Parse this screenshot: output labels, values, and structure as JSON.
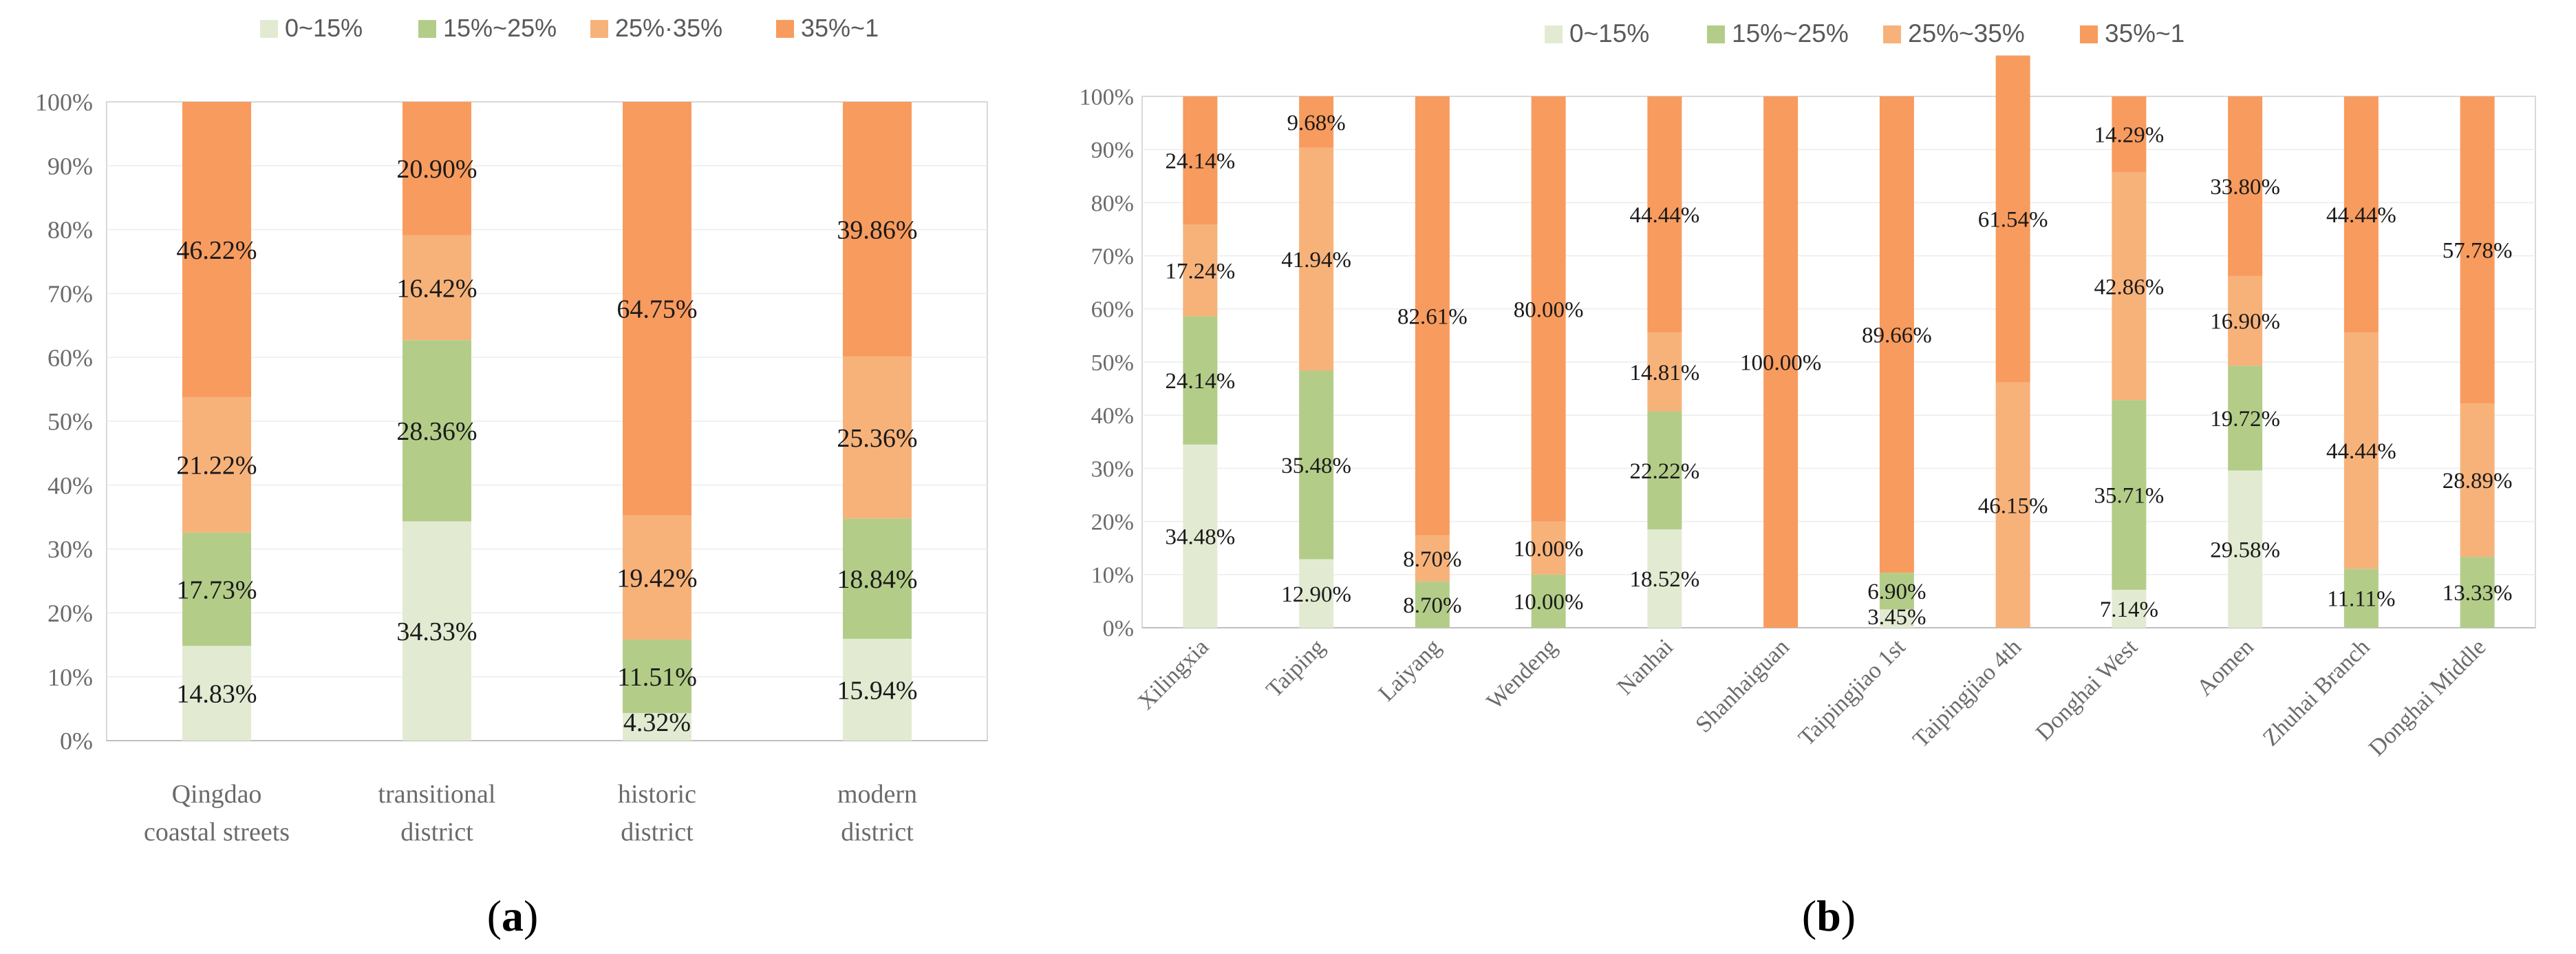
{
  "chart_data": [
    {
      "type": "bar",
      "stacked": true,
      "normalized": true,
      "panel_label": "a",
      "legend_position": "top",
      "legend": [
        "0~15%",
        "15%~25%",
        "25%·35%",
        "35%~1"
      ],
      "ylim": [
        0,
        100
      ],
      "yticks": [
        "0%",
        "10%",
        "20%",
        "30%",
        "40%",
        "50%",
        "60%",
        "70%",
        "80%",
        "90%",
        "100%"
      ],
      "categories": [
        [
          "Qingdao",
          "coastal streets"
        ],
        [
          "transitional",
          "district"
        ],
        [
          "historic",
          "district"
        ],
        [
          "modern",
          "district"
        ]
      ],
      "series": [
        {
          "name": "0~15%",
          "values": [
            14.83,
            34.33,
            4.32,
            15.94
          ],
          "labels": [
            "14.83%",
            "34.33%",
            "4.32%",
            "15.94%"
          ]
        },
        {
          "name": "15%~25%",
          "values": [
            17.73,
            28.36,
            11.51,
            18.84
          ],
          "labels": [
            "17.73%",
            "28.36%",
            "11.51%",
            "18.84%"
          ]
        },
        {
          "name": "25%·35%",
          "values": [
            21.22,
            16.42,
            19.42,
            25.36
          ],
          "labels": [
            "21.22%",
            "16.42%",
            "19.42%",
            "25.36%"
          ]
        },
        {
          "name": "35%~1",
          "values": [
            46.22,
            20.9,
            64.75,
            39.86
          ],
          "labels": [
            "46.22%",
            "20.90%",
            "64.75%",
            "39.86%"
          ]
        }
      ]
    },
    {
      "type": "bar",
      "stacked": true,
      "normalized": true,
      "panel_label": "b",
      "legend_position": "top",
      "legend": [
        "0~15%",
        "15%~25%",
        "25%~35%",
        "35%~1"
      ],
      "ylim": [
        0,
        100
      ],
      "yticks": [
        "0%",
        "10%",
        "20%",
        "30%",
        "40%",
        "50%",
        "60%",
        "70%",
        "80%",
        "90%",
        "100%"
      ],
      "categories": [
        "Xilingxia",
        "Taiping",
        "Laiyang",
        "Wendeng",
        "Nanhai",
        "Shanhaiguan",
        "Taipingjiao 1st",
        "Taipingjiao 4th",
        "Donghai West",
        "Aomen",
        "Zhuhai Branch",
        "Donghai Middle"
      ],
      "series": [
        {
          "name": "0~15%",
          "values": [
            34.48,
            12.9,
            0,
            0,
            18.52,
            0,
            3.45,
            0,
            7.14,
            29.58,
            0,
            0
          ],
          "labels": [
            "34.48%",
            "12.90%",
            "",
            "",
            "18.52%",
            "",
            "3.45%",
            "",
            "7.14%",
            "29.58%",
            "",
            ""
          ]
        },
        {
          "name": "15%~25%",
          "values": [
            24.14,
            35.48,
            8.7,
            10.0,
            22.22,
            0,
            6.9,
            0,
            35.71,
            19.72,
            11.11,
            13.33
          ],
          "labels": [
            "24.14%",
            "35.48%",
            "8.70%",
            "10.00%",
            "22.22%",
            "",
            "6.90%",
            "",
            "35.71%",
            "19.72%",
            "11.11%",
            "13.33%"
          ]
        },
        {
          "name": "25%~35%",
          "values": [
            17.24,
            41.94,
            8.7,
            10.0,
            14.81,
            0,
            0,
            46.15,
            42.86,
            16.9,
            44.44,
            28.89
          ],
          "labels": [
            "17.24%",
            "41.94%",
            "8.70%",
            "10.00%",
            "14.81%",
            "",
            "",
            "46.15%",
            "42.86%",
            "16.90%",
            "44.44%",
            "28.89%"
          ]
        },
        {
          "name": "35%~1",
          "values": [
            24.14,
            9.68,
            82.61,
            80.0,
            44.44,
            100.0,
            89.66,
            61.54,
            14.29,
            33.8,
            44.44,
            57.78
          ],
          "labels": [
            "24.14%",
            "9.68%",
            "82.61%",
            "80.00%",
            "44.44%",
            "100.00%",
            "89.66%",
            "61.54%",
            "14.29%",
            "33.80%",
            "44.44%",
            "57.78%"
          ]
        }
      ]
    }
  ],
  "colors": [
    "#e2ebd2",
    "#b3cd89",
    "#f7b27a",
    "#f89b5e"
  ]
}
